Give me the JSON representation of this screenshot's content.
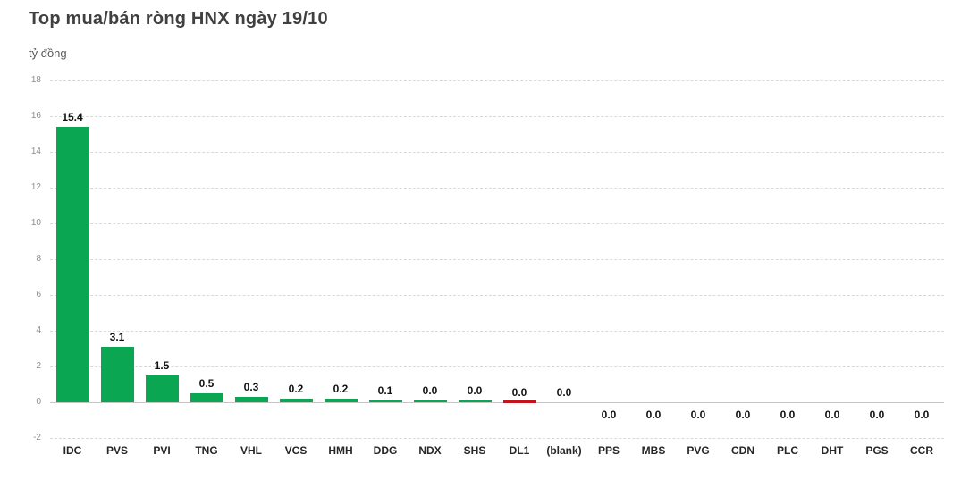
{
  "header": {
    "title": "Top mua/bán ròng HNX ngày 19/10",
    "unit": "tỷ đồng"
  },
  "colors": {
    "positive": "#0AA651",
    "negative": "#C3141E",
    "grid": "#D9D9D9",
    "zero_line": "#C6C6C6",
    "title": "#404040",
    "subtitle": "#595959",
    "axis_label": "#8C8C8C",
    "value_label": "#111111",
    "category_label": "#262626",
    "background": "#FFFFFF"
  },
  "chart_data": {
    "type": "bar",
    "title": "Top mua/bán ròng HNX ngày 19/10",
    "xlabel": "",
    "ylabel": "tỷ đồng",
    "ylim": [
      -2,
      18
    ],
    "ytick_step": 2,
    "yticks": [
      18,
      16,
      14,
      12,
      10,
      8,
      6,
      4,
      2,
      0,
      -2
    ],
    "grid": "horizontal dashed light-gray",
    "legend": "none",
    "categories": [
      "IDC",
      "PVS",
      "PVI",
      "TNG",
      "VHL",
      "VCS",
      "HMH",
      "DDG",
      "NDX",
      "SHS",
      "DL1",
      "(blank)",
      "PPS",
      "MBS",
      "PVG",
      "CDN",
      "PLC",
      "DHT",
      "PGS",
      "CCR"
    ],
    "values": [
      15.4,
      3.1,
      1.5,
      0.5,
      0.3,
      0.2,
      0.2,
      0.1,
      0.0,
      0.0,
      0.0,
      0.0,
      0.0,
      0.0,
      0.0,
      0.0,
      0.0,
      0.0,
      0.0,
      0.0
    ],
    "bars": [
      {
        "ticker": "IDC",
        "value": 15.4,
        "label": "15.4",
        "color": "positive",
        "has_bar": true,
        "label_position": "above"
      },
      {
        "ticker": "PVS",
        "value": 3.1,
        "label": "3.1",
        "color": "positive",
        "has_bar": true,
        "label_position": "above"
      },
      {
        "ticker": "PVI",
        "value": 1.5,
        "label": "1.5",
        "color": "positive",
        "has_bar": true,
        "label_position": "above"
      },
      {
        "ticker": "TNG",
        "value": 0.5,
        "label": "0.5",
        "color": "positive",
        "has_bar": true,
        "label_position": "above"
      },
      {
        "ticker": "VHL",
        "value": 0.3,
        "label": "0.3",
        "color": "positive",
        "has_bar": true,
        "label_position": "above"
      },
      {
        "ticker": "VCS",
        "value": 0.2,
        "label": "0.2",
        "color": "positive",
        "has_bar": true,
        "label_position": "above"
      },
      {
        "ticker": "HMH",
        "value": 0.2,
        "label": "0.2",
        "color": "positive",
        "has_bar": true,
        "label_position": "above"
      },
      {
        "ticker": "DDG",
        "value": 0.1,
        "label": "0.1",
        "color": "positive",
        "has_bar": true,
        "label_position": "above"
      },
      {
        "ticker": "NDX",
        "value": 0.0,
        "label": "0.0",
        "color": "positive",
        "has_bar": true,
        "label_position": "above"
      },
      {
        "ticker": "SHS",
        "value": 0.0,
        "label": "0.0",
        "color": "positive",
        "has_bar": true,
        "label_position": "above"
      },
      {
        "ticker": "DL1",
        "value": 0.0,
        "label": "0.0",
        "color": "negative",
        "has_bar": true,
        "label_position": "above"
      },
      {
        "ticker": "(blank)",
        "value": 0.0,
        "label": "0.0",
        "color": "none",
        "has_bar": false,
        "label_position": "above"
      },
      {
        "ticker": "PPS",
        "value": 0.0,
        "label": "0.0",
        "color": "none",
        "has_bar": false,
        "label_position": "below"
      },
      {
        "ticker": "MBS",
        "value": 0.0,
        "label": "0.0",
        "color": "none",
        "has_bar": false,
        "label_position": "below"
      },
      {
        "ticker": "PVG",
        "value": 0.0,
        "label": "0.0",
        "color": "none",
        "has_bar": false,
        "label_position": "below"
      },
      {
        "ticker": "CDN",
        "value": 0.0,
        "label": "0.0",
        "color": "none",
        "has_bar": false,
        "label_position": "below"
      },
      {
        "ticker": "PLC",
        "value": 0.0,
        "label": "0.0",
        "color": "none",
        "has_bar": false,
        "label_position": "below"
      },
      {
        "ticker": "DHT",
        "value": 0.0,
        "label": "0.0",
        "color": "none",
        "has_bar": false,
        "label_position": "below"
      },
      {
        "ticker": "PGS",
        "value": 0.0,
        "label": "0.0",
        "color": "none",
        "has_bar": false,
        "label_position": "below"
      },
      {
        "ticker": "CCR",
        "value": 0.0,
        "label": "0.0",
        "color": "none",
        "has_bar": false,
        "label_position": "below"
      }
    ]
  }
}
